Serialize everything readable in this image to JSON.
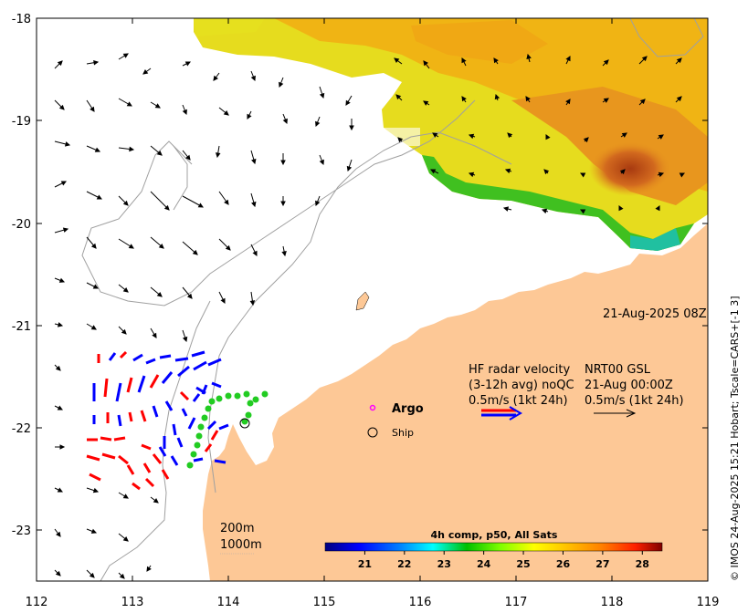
{
  "map": {
    "timestamp": "21-Aug-2025 08Z",
    "credit": "© IMOS 24-Aug-2025 15:21 Hobart; Tscale=CARS+[-1 3]",
    "x_ticks": [
      "112",
      "113",
      "114",
      "115",
      "116",
      "117",
      "118",
      "119"
    ],
    "y_ticks": [
      "-18",
      "-19",
      "-20",
      "-21",
      "-22",
      "-23"
    ],
    "lon_range": [
      112,
      119
    ],
    "lat_range": [
      -23.5,
      -18
    ]
  },
  "legend": {
    "hf_line1": "HF radar velocity",
    "hf_line2": "(3-12h avg) noQC",
    "hf_line3": "0.5m/s (1kt 24h)",
    "nrt_line1": "NRT00 GSL",
    "nrt_line2": "21-Aug 00:00Z",
    "nrt_line3": "0.5m/s (1kt 24h)",
    "argo_label": "Argo",
    "ship_label": "Ship",
    "depth_200": "200m",
    "depth_1000": "1000m"
  },
  "colorbar": {
    "title": "4h comp, p50, All Sats",
    "ticks": [
      "21",
      "22",
      "23",
      "24",
      "25",
      "26",
      "27",
      "28"
    ],
    "range": [
      20,
      28.5
    ],
    "colors": [
      "#00007f",
      "#0000ff",
      "#007fff",
      "#00ffff",
      "#00c000",
      "#7fff00",
      "#ffff00",
      "#ffc000",
      "#ff8000",
      "#ff2000",
      "#7f0000"
    ]
  },
  "colors": {
    "land": "#fdc896",
    "radar_blue": "#0000ff",
    "radar_red": "#ff0000",
    "argo": "#ff00ff",
    "drifter": "#22cc22"
  }
}
